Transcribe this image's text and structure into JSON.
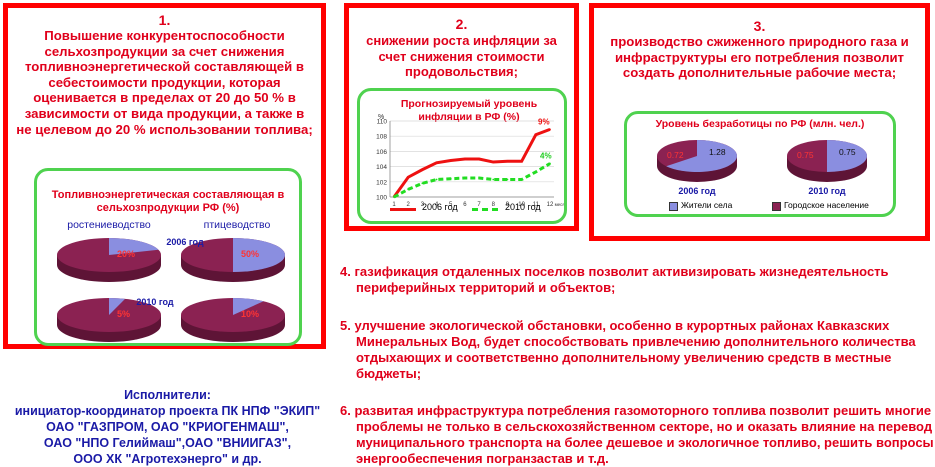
{
  "colors": {
    "red": "#e0001b",
    "blue": "#1a1aa6",
    "green": "#4fd24f",
    "pie_dark": "#8b2252",
    "pie_light": "#8a8ee0"
  },
  "panel1": {
    "number": "1.",
    "text": "Повышение конкурентоспособности сельхозпродукции за счет снижения топливноэнергетической составляющей в себестоимости продукции, которая оценивается в пределах от 20 до 50 % в зависимости  от вида продукции, а также в не целевом до 20 % использовании топлива;",
    "chart_title": "Топливноэнергетическая составляющая в сельхозпродукции РФ (%)",
    "label_left": "ростениеводство",
    "label_right": "птицеводство",
    "year_2006": "2006 год",
    "year_2010": "2010 год"
  },
  "panel2": {
    "number": "2.",
    "text": "снижении роста инфляции за счет снижения стоимости продовольствия;",
    "chart_title": "Прогнозируемый уровень инфляции в РФ (%)",
    "legend_2006": "2006 год",
    "legend_2010": "2010 год",
    "label_9": "9%",
    "label_4": "4%"
  },
  "panel3": {
    "number": "3.",
    "text": "производство сжиженного природного газа и инфраструктуры его потребления позволит  создать дополнительные рабочие места;",
    "chart_title": "Уровень безработицы по РФ (млн. чел.)",
    "year_2006": "2006 год",
    "year_2010": "2010 год",
    "legend_village": "Жители села",
    "legend_city": "Городское население"
  },
  "points": [
    "4. газификация отдаленных поселков позволит активизировать жизнедеятельность периферийных территорий и объектов;",
    "5. улучшение экологической обстановки, особенно в курортных районах Кавказских Минеральных Вод, будет способствовать привлечению дополнительного количества отдыхающих и соответственно  дополнительному увеличению средств в местные бюджеты;",
    "6. развитая инфраструктура потребления газомоторного топлива позволит решить многие  проблемы не только в сельскохозяйственном секторе, но и оказать влияние на перевод  муниципального  транспорта на более дешевое и экологичное топливо, решить вопросы энергообеспечения  погранзастав и т.д."
  ],
  "executors": {
    "title": "Исполнители:",
    "lines": [
      "инициатор-координатор проекта ПК НПФ  \"ЭКИП\"",
      "ОАО \"ГАЗПРОМ, ОАО \"КРИОГЕНМАШ\",",
      "ОАО \"НПО Гелиймаш\",ОАО \"ВНИИГАЗ\",",
      "ООО ХК \"Агротехэнерго\" и др."
    ]
  },
  "chart_data": [
    {
      "type": "pie",
      "title": "Топливноэнергетическая составляющая в сельхозпродукции РФ (%)",
      "pies": [
        {
          "group": "ростениеводство",
          "year": "2006 год",
          "value_pct": 20,
          "label": "20%"
        },
        {
          "group": "птицеводство",
          "year": "2006 год",
          "value_pct": 50,
          "label": "50%"
        },
        {
          "group": "ростениеводство",
          "year": "2010 год",
          "value_pct": 5,
          "label": "5%"
        },
        {
          "group": "птицеводство",
          "year": "2010 год",
          "value_pct": 10,
          "label": "10%"
        }
      ]
    },
    {
      "type": "line",
      "title": "Прогнозируемый уровень инфляции в РФ (%)",
      "ylabel": "%",
      "x": [
        1,
        2,
        3,
        4,
        5,
        6,
        7,
        8,
        9,
        10,
        11,
        12
      ],
      "x_last_label": "месяц",
      "ylim": [
        100,
        110
      ],
      "yticks": [
        100,
        102,
        104,
        106,
        108,
        110
      ],
      "series": [
        {
          "name": "2006 год",
          "values": [
            100.0,
            102.6,
            103.6,
            104.5,
            104.8,
            105.0,
            105.0,
            104.6,
            104.7,
            104.7,
            108.2,
            108.9
          ]
        },
        {
          "name": "2010 год",
          "values": [
            100.0,
            101.0,
            101.8,
            102.3,
            102.4,
            102.5,
            102.5,
            102.3,
            102.3,
            102.3,
            103.3,
            104.4
          ]
        }
      ]
    },
    {
      "type": "pie",
      "title": "Уровень безработицы по РФ (млн. чел.)",
      "legend": [
        "Жители села",
        "Городское население"
      ],
      "pies": [
        {
          "year": "2006 год",
          "values": [
            {
              "name": "Жители села",
              "value": 1.28
            },
            {
              "name": "Городское население",
              "value": 0.72
            }
          ]
        },
        {
          "year": "2010 год",
          "values": [
            {
              "name": "Жители села",
              "value": 0.75
            },
            {
              "name": "Городское население",
              "value": 0.75
            }
          ]
        }
      ]
    }
  ]
}
